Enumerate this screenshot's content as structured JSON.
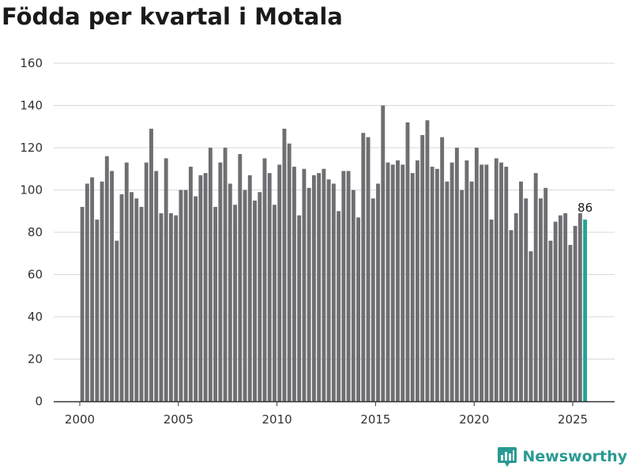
{
  "chart_data": {
    "type": "bar",
    "title": "Födda per kvartal i Motala",
    "xlabel": "",
    "ylabel": "",
    "x_tick_labels": [
      "2000",
      "2005",
      "2010",
      "2015",
      "2020",
      "2025"
    ],
    "y_tick_labels": [
      "0",
      "20",
      "40",
      "60",
      "80",
      "100",
      "120",
      "140",
      "160"
    ],
    "ylim": [
      0,
      160
    ],
    "grid": true,
    "start_year": 2000,
    "start_quarter": 1,
    "highlight_last": true,
    "last_value_label": "86",
    "values": [
      92,
      103,
      106,
      86,
      104,
      116,
      109,
      76,
      98,
      113,
      99,
      96,
      92,
      113,
      129,
      109,
      89,
      115,
      89,
      88,
      100,
      100,
      111,
      97,
      107,
      108,
      120,
      92,
      113,
      120,
      103,
      93,
      117,
      100,
      107,
      95,
      99,
      115,
      108,
      93,
      112,
      129,
      122,
      111,
      88,
      110,
      101,
      107,
      108,
      110,
      105,
      103,
      90,
      109,
      109,
      100,
      87,
      127,
      125,
      96,
      103,
      140,
      113,
      112,
      114,
      112,
      132,
      108,
      114,
      126,
      133,
      111,
      110,
      125,
      104,
      113,
      120,
      100,
      114,
      104,
      120,
      112,
      112,
      86,
      115,
      113,
      111,
      81,
      89,
      104,
      96,
      71,
      108,
      96,
      101,
      76,
      85,
      88,
      89,
      74,
      83,
      89,
      86
    ]
  },
  "colors": {
    "bar": "#6e6e73",
    "highlight": "#23a39a",
    "grid": "#d9d9d9",
    "axis": "#333333"
  },
  "brand": {
    "name": "Newsworthy",
    "icon": "newsworthy-logo-icon"
  }
}
